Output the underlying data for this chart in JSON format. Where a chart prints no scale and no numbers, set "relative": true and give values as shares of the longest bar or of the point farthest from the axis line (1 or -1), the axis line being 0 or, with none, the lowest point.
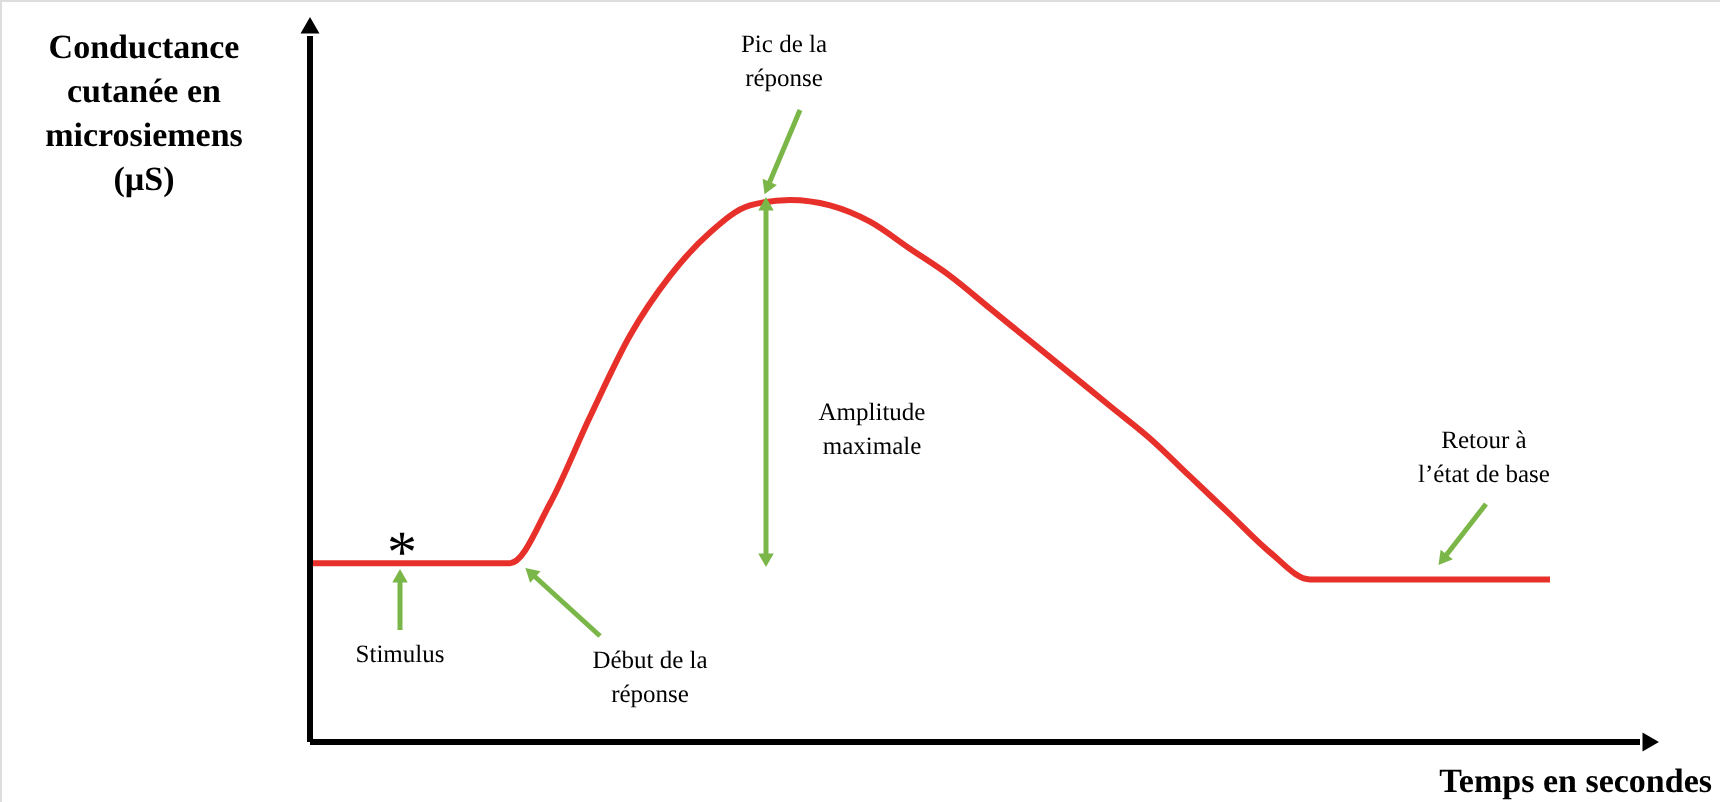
{
  "chart_data": {
    "type": "line",
    "relative": true,
    "xlabel": "Temps en secondes",
    "ylabel": "Conductance\ncutanée en\nmicrosiemens\n(µS)",
    "categories": [
      null,
      null,
      null,
      null,
      null,
      null,
      null,
      null,
      null,
      null,
      null,
      null,
      null,
      null,
      null,
      null,
      null,
      null,
      null,
      null,
      null,
      null,
      null,
      null,
      null,
      null,
      null,
      null,
      null,
      null,
      null,
      null
    ],
    "series": [
      {
        "color": "#e8302a",
        "values": [
          0.33,
          0.33,
          0.33,
          0.33,
          0.33,
          0.33,
          0.44,
          0.6,
          0.75,
          0.86,
          0.94,
          0.99,
          1.0,
          0.99,
          0.96,
          0.91,
          0.86,
          0.8,
          0.74,
          0.68,
          0.62,
          0.56,
          0.49,
          0.42,
          0.35,
          0.3,
          0.3,
          0.3,
          0.3,
          0.3,
          0.3,
          0.3
        ]
      }
    ],
    "line_style": "solid",
    "marker": "none",
    "annotations": [
      "Pic de la\nréponse",
      "Amplitude\nmaximale",
      "Retour à\nl’état de base",
      "Stimulus",
      "Début de la\nréponse",
      "*"
    ]
  }
}
